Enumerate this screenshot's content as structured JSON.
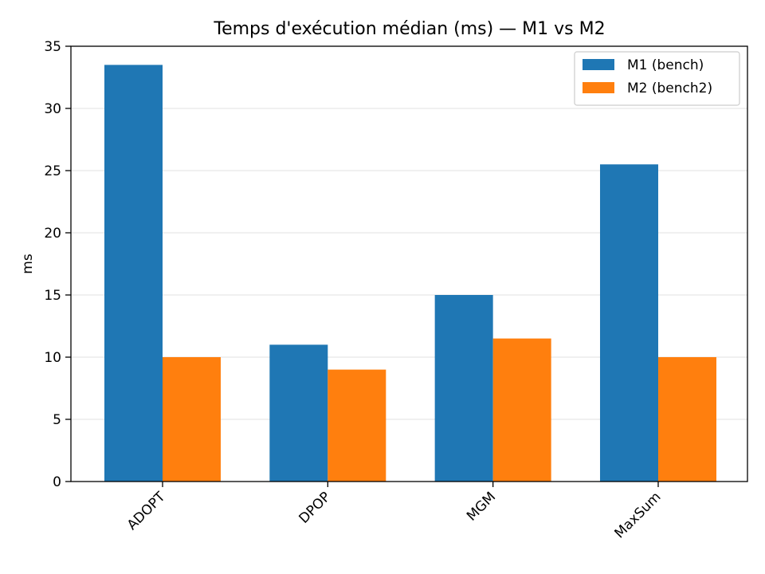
{
  "chart_data": {
    "type": "bar",
    "title": "Temps d'exécution médian (ms) — M1 vs M2",
    "xlabel": "",
    "ylabel": "ms",
    "categories": [
      "ADOPT",
      "DPOP",
      "MGM",
      "MaxSum"
    ],
    "series": [
      {
        "name": "M1 (bench)",
        "color": "#1f77b4",
        "values": [
          33.5,
          11.0,
          15.0,
          25.5
        ]
      },
      {
        "name": "M2 (bench2)",
        "color": "#ff7f0e",
        "values": [
          10.0,
          9.0,
          11.5,
          10.0
        ]
      }
    ],
    "ylim": [
      0,
      35
    ],
    "yticks": [
      0,
      5,
      10,
      15,
      20,
      25,
      30,
      35
    ],
    "grid": "y",
    "legend": "top-right",
    "xtick_rotation": 45
  }
}
